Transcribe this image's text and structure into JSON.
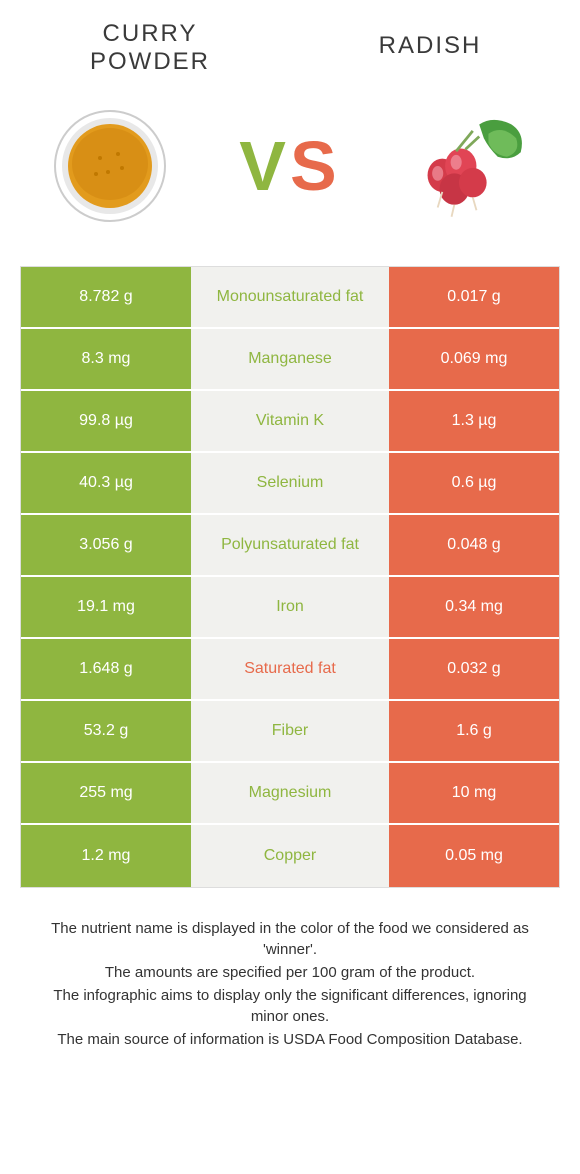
{
  "titles": {
    "left_line1": "CURRY",
    "left_line2": "POWDER",
    "right": "RADISH"
  },
  "vs": {
    "v": "V",
    "s": "S"
  },
  "colors": {
    "green": "#8fb640",
    "orange": "#e76a4b",
    "mid_bg": "#f1f1ee"
  },
  "rows": [
    {
      "left": "8.782 g",
      "label": "Monounsaturated fat",
      "right": "0.017 g",
      "winner": "left"
    },
    {
      "left": "8.3 mg",
      "label": "Manganese",
      "right": "0.069 mg",
      "winner": "left"
    },
    {
      "left": "99.8 µg",
      "label": "Vitamin K",
      "right": "1.3 µg",
      "winner": "left"
    },
    {
      "left": "40.3 µg",
      "label": "Selenium",
      "right": "0.6 µg",
      "winner": "left"
    },
    {
      "left": "3.056 g",
      "label": "Polyunsaturated fat",
      "right": "0.048 g",
      "winner": "left"
    },
    {
      "left": "19.1 mg",
      "label": "Iron",
      "right": "0.34 mg",
      "winner": "left"
    },
    {
      "left": "1.648 g",
      "label": "Saturated fat",
      "right": "0.032 g",
      "winner": "right"
    },
    {
      "left": "53.2 g",
      "label": "Fiber",
      "right": "1.6 g",
      "winner": "left"
    },
    {
      "left": "255 mg",
      "label": "Magnesium",
      "right": "10 mg",
      "winner": "left"
    },
    {
      "left": "1.2 mg",
      "label": "Copper",
      "right": "0.05 mg",
      "winner": "left"
    }
  ],
  "footer": {
    "l1": "The nutrient name is displayed in the color of the food we considered as 'winner'.",
    "l2": "The amounts are specified per 100 gram of the product.",
    "l3": "The infographic aims to display only the significant differences, ignoring minor ones.",
    "l4": "The main source of information is USDA Food Composition Database."
  }
}
